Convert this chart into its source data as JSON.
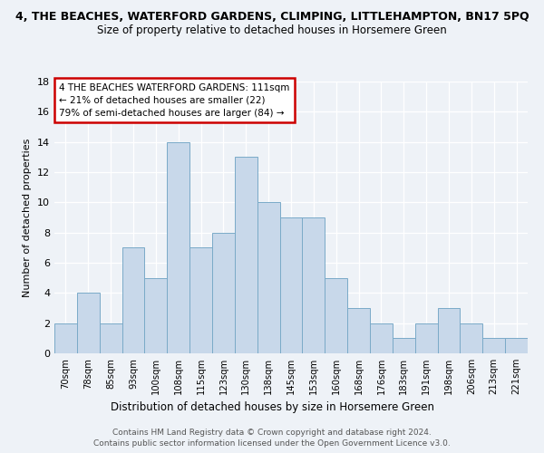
{
  "title": "4, THE BEACHES, WATERFORD GARDENS, CLIMPING, LITTLEHAMPTON, BN17 5PQ",
  "subtitle": "Size of property relative to detached houses in Horsemere Green",
  "xlabel": "Distribution of detached houses by size in Horsemere Green",
  "ylabel": "Number of detached properties",
  "footnote1": "Contains HM Land Registry data © Crown copyright and database right 2024.",
  "footnote2": "Contains public sector information licensed under the Open Government Licence v3.0.",
  "categories": [
    "70sqm",
    "78sqm",
    "85sqm",
    "93sqm",
    "100sqm",
    "108sqm",
    "115sqm",
    "123sqm",
    "130sqm",
    "138sqm",
    "145sqm",
    "153sqm",
    "160sqm",
    "168sqm",
    "176sqm",
    "183sqm",
    "191sqm",
    "198sqm",
    "206sqm",
    "213sqm",
    "221sqm"
  ],
  "values": [
    2,
    4,
    2,
    7,
    5,
    14,
    7,
    8,
    13,
    10,
    9,
    9,
    5,
    3,
    2,
    1,
    2,
    3,
    2,
    1,
    1
  ],
  "bar_color": "#c8d8ea",
  "bar_edge_color": "#7aaac8",
  "ylim": [
    0,
    18
  ],
  "yticks": [
    0,
    2,
    4,
    6,
    8,
    10,
    12,
    14,
    16,
    18
  ],
  "annotation_title": "4 THE BEACHES WATERFORD GARDENS: 111sqm",
  "annotation_line1": "← 21% of detached houses are smaller (22)",
  "annotation_line2": "79% of semi-detached houses are larger (84) →",
  "annotation_box_color": "#ffffff",
  "annotation_box_edge_color": "#cc0000",
  "bg_color": "#eef2f7",
  "title_fontsize": 9,
  "subtitle_fontsize": 8.5,
  "footnote_fontsize": 6.5,
  "annotation_fontsize": 7.5
}
